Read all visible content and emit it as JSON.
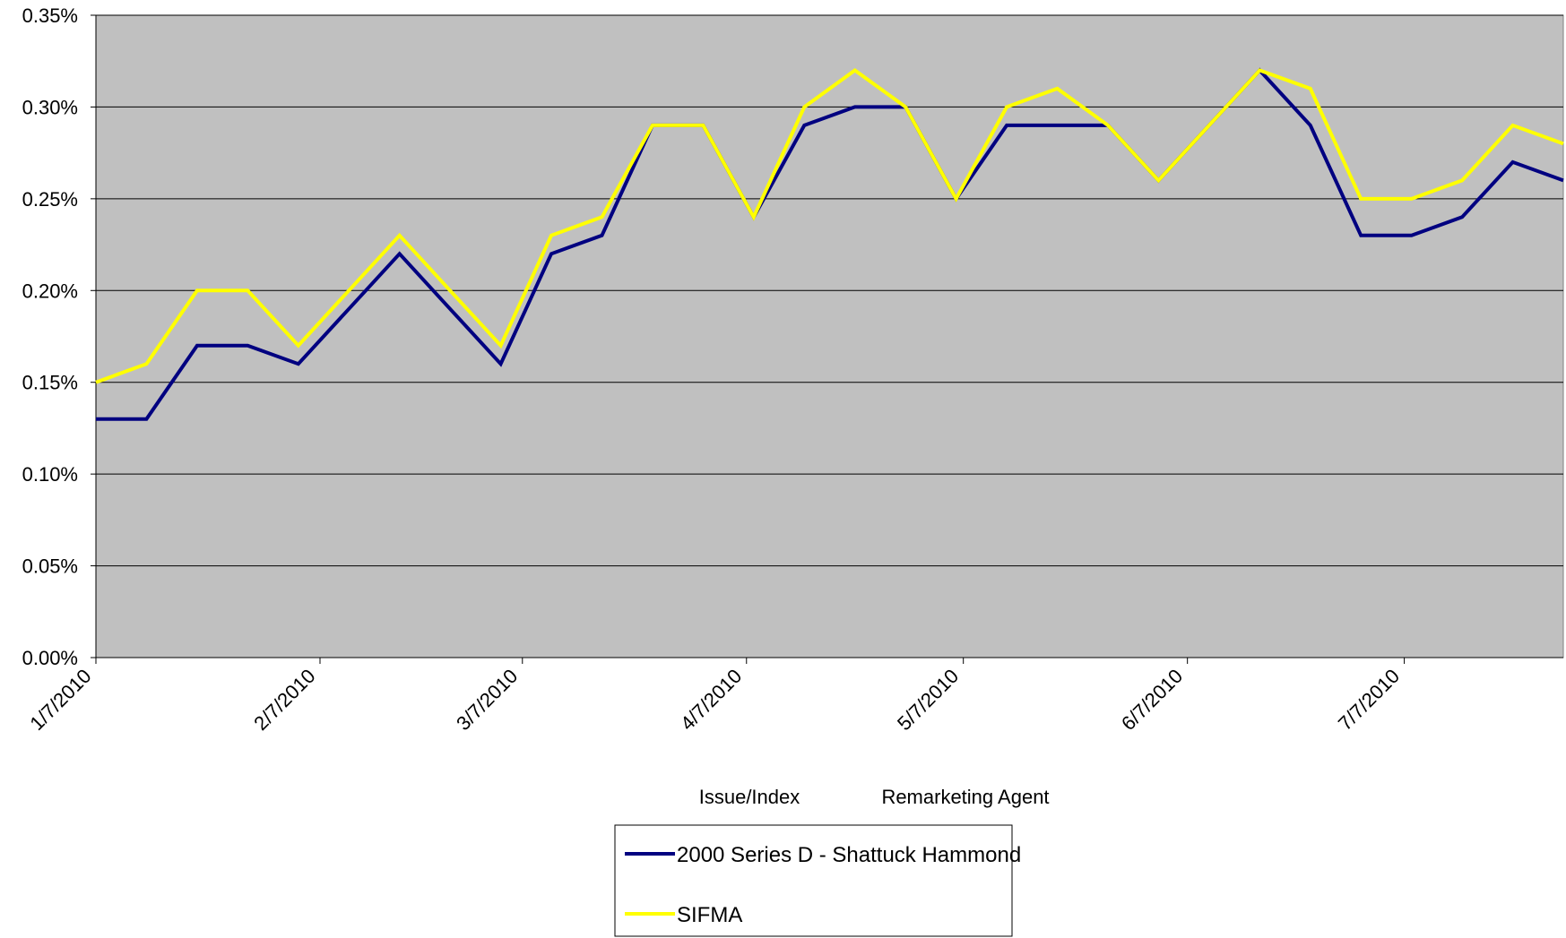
{
  "chart_data": {
    "type": "line",
    "x": [
      "1/7/2010",
      "1/14/2010",
      "1/21/2010",
      "1/28/2010",
      "2/4/2010",
      "2/11/2010",
      "2/18/2010",
      "2/25/2010",
      "3/4/2010",
      "3/11/2010",
      "3/18/2010",
      "3/25/2010",
      "4/1/2010",
      "4/8/2010",
      "4/15/2010",
      "4/22/2010",
      "4/29/2010",
      "5/6/2010",
      "5/13/2010",
      "5/20/2010",
      "5/27/2010",
      "6/3/2010",
      "6/10/2010",
      "6/17/2010",
      "6/24/2010",
      "7/1/2010",
      "7/8/2010",
      "7/15/2010",
      "7/22/2010",
      "7/29/2010"
    ],
    "series": [
      {
        "name": "2000 Series D - Shattuck Hammond",
        "color": "#000080",
        "values": [
          0.13,
          0.13,
          0.17,
          0.17,
          0.16,
          0.19,
          0.22,
          0.19,
          0.16,
          0.22,
          0.23,
          0.29,
          0.29,
          0.24,
          0.29,
          0.3,
          0.3,
          0.25,
          0.29,
          0.29,
          0.29,
          0.26,
          0.29,
          0.32,
          0.29,
          0.23,
          0.23,
          0.24,
          0.27,
          0.26
        ]
      },
      {
        "name": "SIFMA",
        "color": "#ffff00",
        "values": [
          0.15,
          0.16,
          0.2,
          0.2,
          0.17,
          0.2,
          0.23,
          0.2,
          0.17,
          0.23,
          0.24,
          0.29,
          0.29,
          0.24,
          0.3,
          0.32,
          0.3,
          0.25,
          0.3,
          0.31,
          0.29,
          0.26,
          0.29,
          0.32,
          0.31,
          0.25,
          0.25,
          0.26,
          0.29,
          0.28
        ]
      }
    ],
    "x_tick_labels": [
      "1/7/2010",
      "2/7/2010",
      "3/7/2010",
      "4/7/2010",
      "5/7/2010",
      "6/7/2010",
      "7/7/2010"
    ],
    "y_tick_labels": [
      "0.00%",
      "0.05%",
      "0.10%",
      "0.15%",
      "0.20%",
      "0.25%",
      "0.30%",
      "0.35%"
    ],
    "ylim": [
      0,
      0.35
    ],
    "y_unit": "percent",
    "xlabel_left": "Issue/Index",
    "xlabel_right": "Remarketing Agent",
    "title": "",
    "grid": "horizontal",
    "legend_position": "bottom",
    "plot_background": "#c0c0c0"
  }
}
